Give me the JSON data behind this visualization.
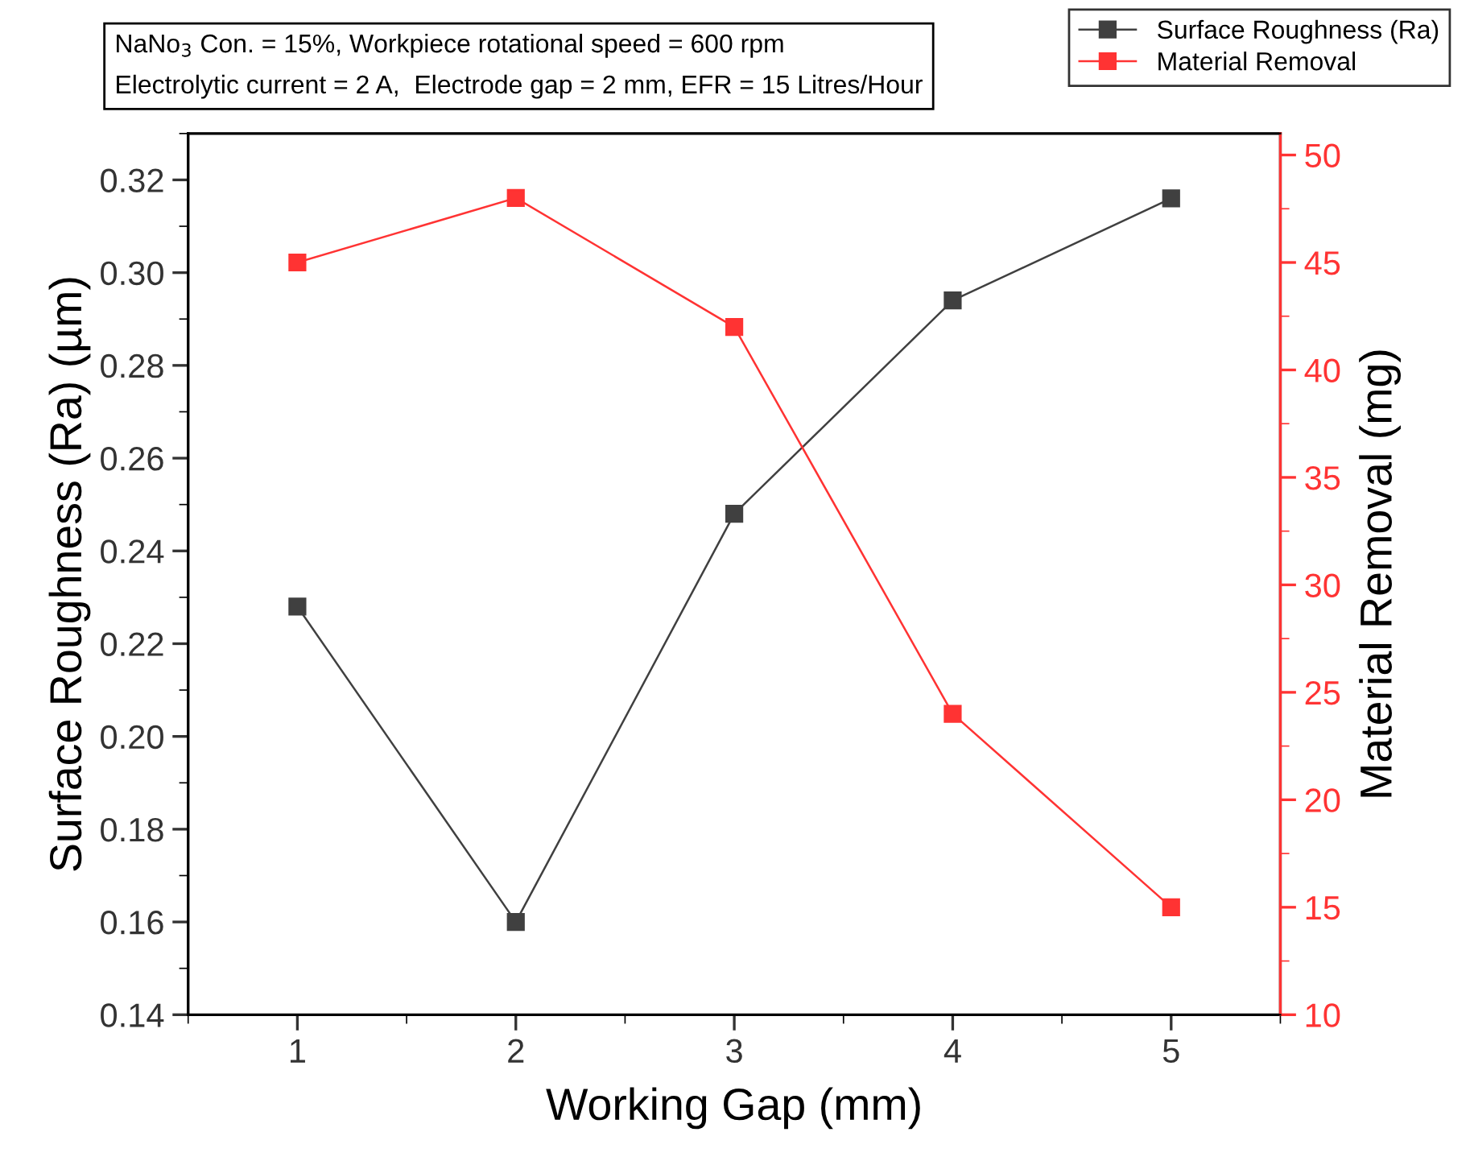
{
  "chart_data": {
    "type": "line",
    "xlabel": "Working Gap (mm)",
    "ylabel": "Surface Roughness (Ra) (µm)",
    "y2label": "Material Removal (mg)",
    "x": [
      1,
      2,
      3,
      4,
      5
    ],
    "xlim": [
      0.5,
      5.5
    ],
    "xticks": [
      1,
      2,
      3,
      4,
      5
    ],
    "ylim": [
      0.14,
      0.33
    ],
    "yticks": [
      0.14,
      0.16,
      0.18,
      {
        "value": 0.2,
        "label": "0.20"
      },
      0.22,
      0.24,
      0.26,
      0.28,
      {
        "value": 0.3,
        "label": "0.30"
      },
      0.32
    ],
    "y2lim": [
      10,
      51
    ],
    "y2ticks": [
      10,
      15,
      20,
      25,
      30,
      35,
      40,
      45,
      50
    ],
    "marker": "square",
    "line_style": "solid",
    "grid": false,
    "legend": "top right",
    "annotations": [
      "NaNo$_{3}$ Con. = 15%, Workpiece rotational speed = 600 rpm",
      "Electrolytic current = 2 A,  Electrode gap = 2 mm, EFR = 15 Litres/Hour"
    ],
    "series": [
      {
        "name": "Surface Roughness (Ra)",
        "color": "#404040",
        "values": [
          0.228,
          0.16,
          0.248,
          0.294,
          0.316
        ]
      },
      {
        "name": "Material Removal",
        "color": "#ff3333",
        "axis": "y2",
        "values": [
          45,
          48,
          42,
          24,
          15
        ]
      }
    ]
  }
}
